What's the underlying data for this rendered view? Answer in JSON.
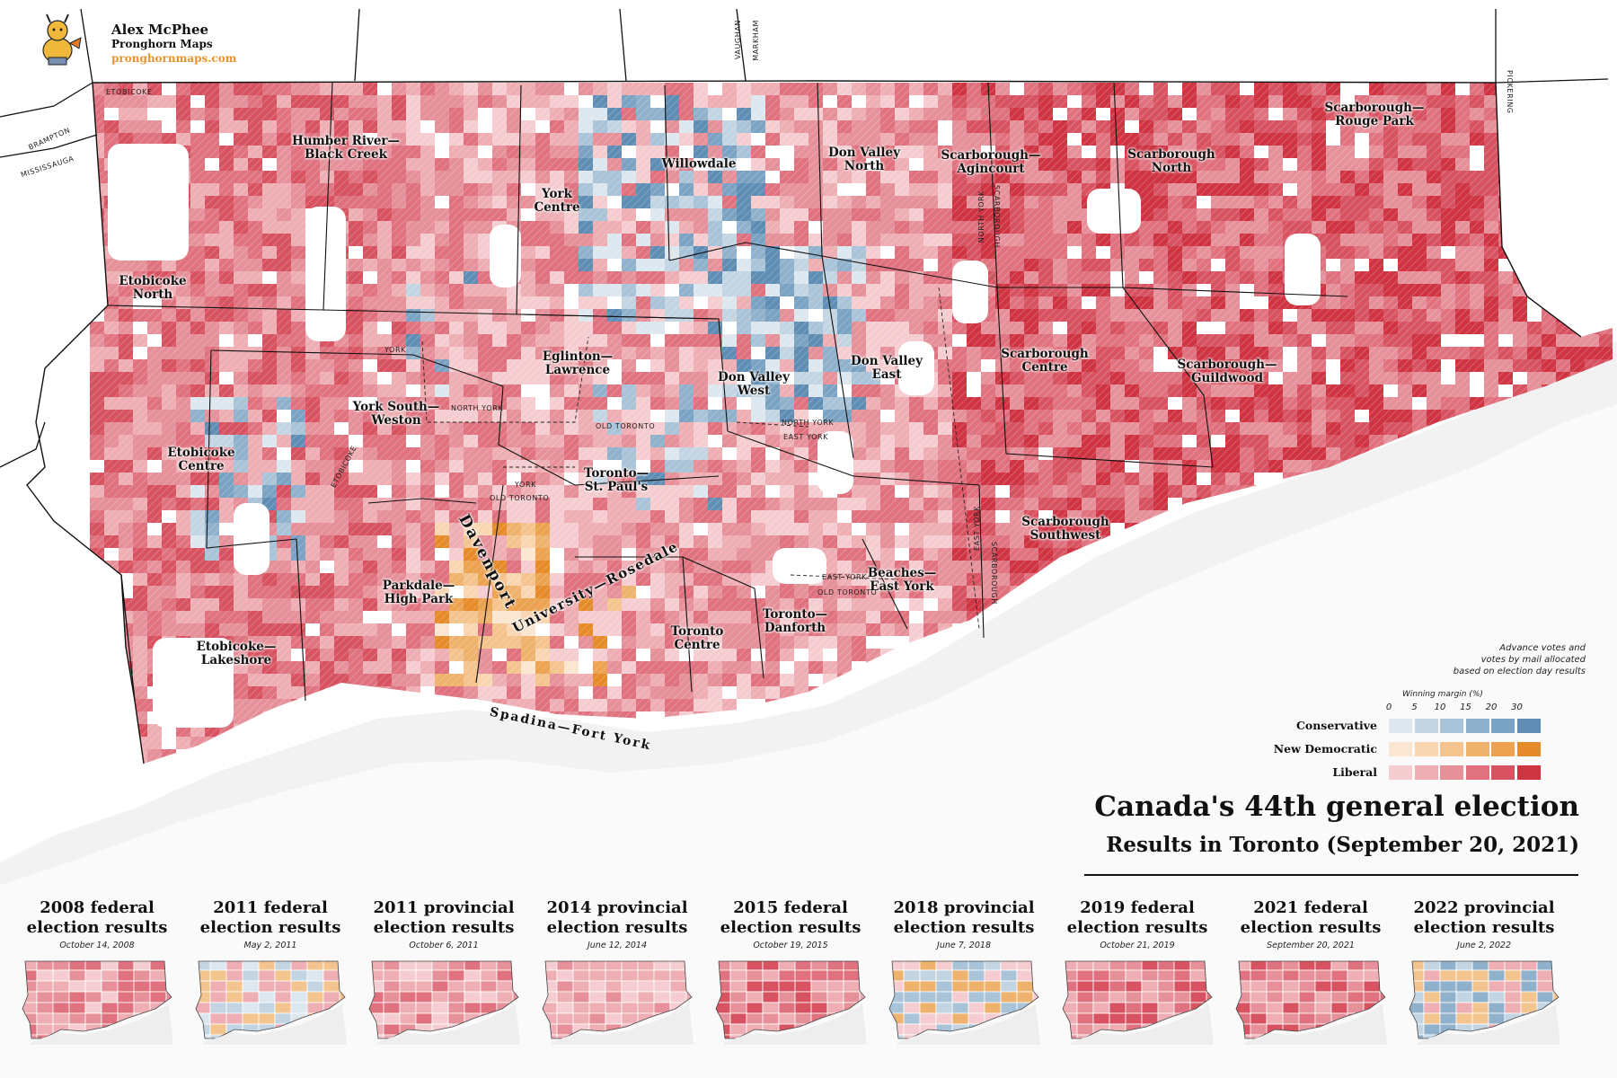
{
  "credit": {
    "name": "Alex McPhee",
    "org": "Pronghorn Maps",
    "url": "pronghornmaps.com"
  },
  "ridings": [
    {
      "id": "humber",
      "label": "Humber River—\nBlack Creek"
    },
    {
      "id": "york-centre",
      "label": "York\nCentre"
    },
    {
      "id": "willowdale",
      "label": "Willowdale"
    },
    {
      "id": "dv-north",
      "label": "Don Valley\nNorth"
    },
    {
      "id": "agincourt",
      "label": "Scarborough—\nAgincourt"
    },
    {
      "id": "sc-north",
      "label": "Scarborough\nNorth"
    },
    {
      "id": "rouge",
      "label": "Scarborough—\nRouge Park"
    },
    {
      "id": "eto-north",
      "label": "Etobicoke\nNorth"
    },
    {
      "id": "eglinton",
      "label": "Eglinton—\nLawrence"
    },
    {
      "id": "dv-west",
      "label": "Don Valley\nWest"
    },
    {
      "id": "dv-east",
      "label": "Don Valley\nEast"
    },
    {
      "id": "sc-centre",
      "label": "Scarborough\nCentre"
    },
    {
      "id": "guildwood",
      "label": "Scarborough—\nGuildwood"
    },
    {
      "id": "york-south",
      "label": "York South—\nWeston"
    },
    {
      "id": "eto-centre",
      "label": "Etobicoke\nCentre"
    },
    {
      "id": "stpauls",
      "label": "Toronto—\nSt. Paul's"
    },
    {
      "id": "sc-sw",
      "label": "Scarborough\nSouthwest"
    },
    {
      "id": "davenport",
      "label": "Davenport"
    },
    {
      "id": "rosedale",
      "label": "University—Rosedale"
    },
    {
      "id": "beaches",
      "label": "Beaches—\nEast York"
    },
    {
      "id": "parkdale",
      "label": "Parkdale—\nHigh Park"
    },
    {
      "id": "tor-centre",
      "label": "Toronto\nCentre"
    },
    {
      "id": "danforth",
      "label": "Toronto—\nDanforth"
    },
    {
      "id": "lakeshore",
      "label": "Etobicoke—\nLakeshore"
    },
    {
      "id": "spadina",
      "label": "Spadina—Fort York"
    }
  ],
  "municipalities": {
    "etobicoke_top": "ETOBICOKE",
    "brampton": "BRAMPTON",
    "mississauga": "MISSISSAUGA",
    "vaughan": "VAUGHAN",
    "markham": "MARKHAM",
    "pickering": "PICKERING",
    "york_a": "YORK",
    "north_york_a": "NORTH YORK",
    "etobicoke_v": "ETOBICOKE",
    "york_b": "YORK",
    "old_toronto_a": "OLD TORONTO",
    "old_toronto_b": "OLD TORONTO",
    "north_york_b": "NORTH YORK",
    "east_york_a": "EAST YORK",
    "east_york_b": "EAST YORK",
    "old_toronto_c": "OLD TORONTO",
    "north_york_v": "NORTH YORK",
    "scarborough_v1": "SCARBOROUGH",
    "east_york_v": "EAST YORK",
    "scarborough_v2": "SCARBOROUGH"
  },
  "note": {
    "line1": "Advance votes and",
    "line2": "votes by mail allocated",
    "line3": "based on election day results"
  },
  "legend": {
    "title": "Winning margin (%)",
    "ticks": [
      "0",
      "5",
      "10",
      "15",
      "20",
      "30"
    ],
    "parties": [
      {
        "name": "Conservative",
        "colors": [
          "#dde7ef",
          "#c3d5e3",
          "#a9c3d8",
          "#8fb1cc",
          "#7aa2c2",
          "#5f8db4"
        ]
      },
      {
        "name": "New Democratic",
        "colors": [
          "#fbe6d2",
          "#f8d6b2",
          "#f4c48e",
          "#efb26c",
          "#eca24f",
          "#e58b2a"
        ]
      },
      {
        "name": "Liberal",
        "colors": [
          "#f5cdd0",
          "#eeaeb3",
          "#e6909a",
          "#df727e",
          "#d85361",
          "#cf3443"
        ]
      }
    ]
  },
  "title": {
    "main": "Canada's 44th general election",
    "sub": "Results in Toronto (September 20, 2021)"
  },
  "history": [
    {
      "title": "2008 federal\nelection results",
      "date": "October 14, 2008",
      "palette": [
        "#e6909a",
        "#eeaeb3",
        "#df727e",
        "#f5cdd0"
      ]
    },
    {
      "title": "2011 federal\nelection results",
      "date": "May 2, 2011",
      "palette": [
        "#c3d5e3",
        "#dde7ef",
        "#f4c48e",
        "#eeaeb3"
      ]
    },
    {
      "title": "2011 provincial\nelection results",
      "date": "October 6, 2011",
      "palette": [
        "#eeaeb3",
        "#e6909a",
        "#f5cdd0",
        "#df727e"
      ]
    },
    {
      "title": "2014 provincial\nelection results",
      "date": "June 12, 2014",
      "palette": [
        "#f5cdd0",
        "#eeaeb3",
        "#e6909a",
        "#eeaeb3"
      ]
    },
    {
      "title": "2015 federal\nelection results",
      "date": "October 19, 2015",
      "palette": [
        "#d85361",
        "#df727e",
        "#eeaeb3",
        "#e6909a"
      ]
    },
    {
      "title": "2018 provincial\nelection results",
      "date": "June 7, 2018",
      "palette": [
        "#a9c3d8",
        "#c3d5e3",
        "#efb26c",
        "#f5cdd0"
      ]
    },
    {
      "title": "2019 federal\nelection results",
      "date": "October 21, 2019",
      "palette": [
        "#d85361",
        "#df727e",
        "#e6909a",
        "#eeaeb3"
      ]
    },
    {
      "title": "2021 federal\nelection results",
      "date": "September 20, 2021",
      "palette": [
        "#d85361",
        "#df727e",
        "#e6909a",
        "#eeaeb3"
      ]
    },
    {
      "title": "2022 provincial\nelection results",
      "date": "June 2, 2022",
      "palette": [
        "#8fb1cc",
        "#c3d5e3",
        "#f4c48e",
        "#eeaeb3"
      ]
    }
  ]
}
